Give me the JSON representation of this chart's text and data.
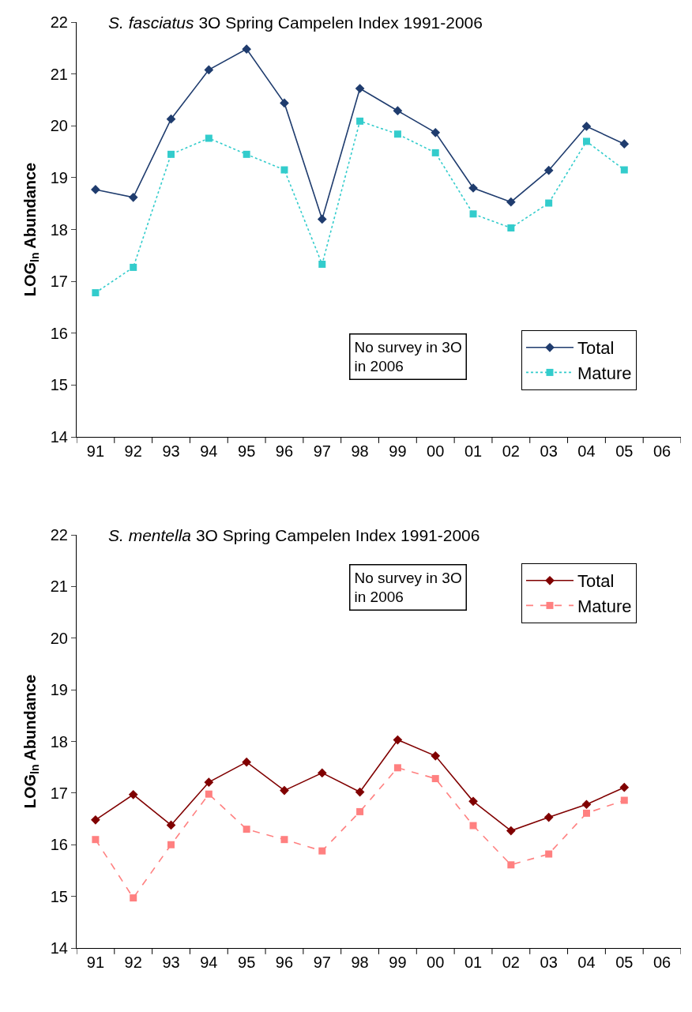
{
  "chart_data": [
    {
      "type": "line",
      "title": "S. fasciatus 3O Spring Campelen Index 1991-2006",
      "ylabel": "LOG$_{ln}$ Abundance",
      "categories": [
        "91",
        "92",
        "93",
        "94",
        "95",
        "96",
        "97",
        "98",
        "99",
        "00",
        "01",
        "02",
        "03",
        "04",
        "05",
        "06"
      ],
      "series": [
        {
          "name": "Total",
          "color": "#1f3c6e",
          "marker": "diamond",
          "line_style": "solid",
          "values": [
            18.77,
            18.62,
            20.13,
            21.08,
            21.48,
            20.44,
            18.2,
            20.72,
            20.29,
            19.87,
            18.8,
            18.53,
            19.14,
            19.99,
            19.65,
            null
          ]
        },
        {
          "name": "Mature",
          "color": "#33cccc",
          "marker": "square",
          "line_style": "dotted",
          "values": [
            16.78,
            17.27,
            19.45,
            19.76,
            19.45,
            19.15,
            17.33,
            20.09,
            19.84,
            19.48,
            18.3,
            18.03,
            18.51,
            19.7,
            19.15,
            null
          ]
        }
      ],
      "ylim": [
        14,
        22
      ],
      "yticks": [
        14,
        15,
        16,
        17,
        18,
        19,
        20,
        21,
        22
      ],
      "legend": "bottom right",
      "annotations": [
        "No survey in 3O\nin 2006"
      ]
    },
    {
      "type": "line",
      "title": "S. mentella 3O Spring Campelen Index 1991-2006",
      "ylabel": "LOG$_{ln}$ Abundance",
      "categories": [
        "91",
        "92",
        "93",
        "94",
        "95",
        "96",
        "97",
        "98",
        "99",
        "00",
        "01",
        "02",
        "03",
        "04",
        "05",
        "06"
      ],
      "series": [
        {
          "name": "Total",
          "color": "#800000",
          "marker": "diamond",
          "line_style": "solid",
          "values": [
            16.48,
            16.97,
            16.38,
            17.21,
            17.6,
            17.05,
            17.39,
            17.02,
            18.03,
            17.72,
            16.84,
            16.27,
            16.53,
            16.78,
            17.11,
            null
          ]
        },
        {
          "name": "Mature",
          "color": "#ff8080",
          "marker": "square",
          "line_style": "dashed",
          "values": [
            16.1,
            14.97,
            16.0,
            16.98,
            16.3,
            16.1,
            15.88,
            16.64,
            17.49,
            17.28,
            16.37,
            15.61,
            15.82,
            16.61,
            16.86,
            null
          ]
        }
      ],
      "ylim": [
        14,
        22
      ],
      "yticks": [
        14,
        15,
        16,
        17,
        18,
        19,
        20,
        21,
        22
      ],
      "legend": "top right",
      "annotations": [
        "No survey in 3O\nin 2006"
      ]
    }
  ]
}
